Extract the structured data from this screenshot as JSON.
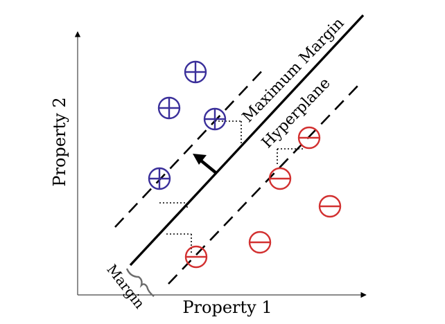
{
  "labels": {
    "x_axis": "Property 1",
    "y_axis": "Property 2",
    "hyperplane": "Hyperplane",
    "max_margin": "Maximum Margin",
    "margin": "Margin"
  },
  "colors": {
    "positive": "#3a2f9a",
    "negative": "#d23030",
    "line": "#000000",
    "axis": "#000000"
  },
  "classes": {
    "positive_symbol": "plus-circle",
    "negative_symbol": "minus-circle"
  }
}
